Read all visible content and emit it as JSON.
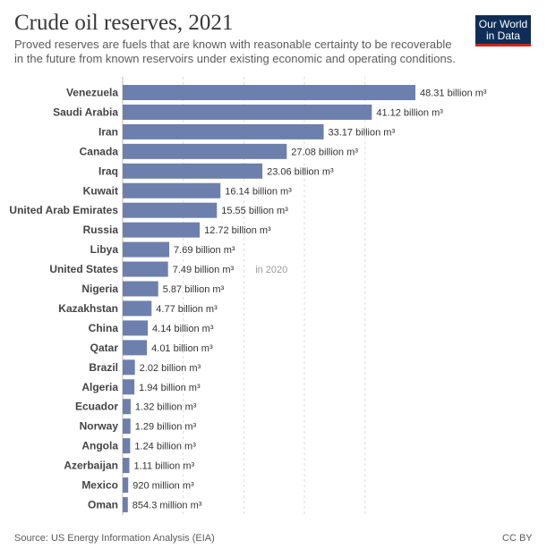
{
  "header": {
    "title": "Crude oil reserves, 2021",
    "subtitle": "Proved reserves are fuels that are known with reasonable certainty to be recoverable in the future from known reservoirs under existing economic and operating conditions."
  },
  "logo": {
    "line1": "Our World",
    "line2": "in Data"
  },
  "footer": {
    "source": "Source: US Energy Information Analysis (EIA)",
    "license": "CC BY"
  },
  "colors": {
    "bar": "#6d7fad",
    "grid": "#dddddd"
  },
  "chart_data": {
    "type": "bar",
    "orientation": "horizontal",
    "grid": true,
    "xlim": [
      0,
      48.31
    ],
    "categories": [
      "Venezuela",
      "Saudi Arabia",
      "Iran",
      "Canada",
      "Iraq",
      "Kuwait",
      "United Arab Emirates",
      "Russia",
      "Libya",
      "United States",
      "Nigeria",
      "Kazakhstan",
      "China",
      "Qatar",
      "Brazil",
      "Algeria",
      "Ecuador",
      "Norway",
      "Angola",
      "Azerbaijan",
      "Mexico",
      "Oman"
    ],
    "values": [
      48.31,
      41.12,
      33.17,
      27.08,
      23.06,
      16.14,
      15.55,
      12.72,
      7.69,
      7.49,
      5.87,
      4.77,
      4.14,
      4.01,
      2.02,
      1.94,
      1.32,
      1.29,
      1.24,
      1.11,
      0.92,
      0.8543
    ],
    "value_labels": [
      "48.31 billion m³",
      "41.12 billion m³",
      "33.17 billion m³",
      "27.08 billion m³",
      "23.06 billion m³",
      "16.14 billion m³",
      "15.55 billion m³",
      "12.72 billion m³",
      "7.69 billion m³",
      "7.49 billion m³",
      "5.87 billion m³",
      "4.77 billion m³",
      "4.14 billion m³",
      "4.01 billion m³",
      "2.02 billion m³",
      "1.94 billion m³",
      "1.32 billion m³",
      "1.29 billion m³",
      "1.24 billion m³",
      "1.11 billion m³",
      "920 million m³",
      "854.3 million m³"
    ],
    "notes": [
      "",
      "",
      "",
      "",
      "",
      "",
      "",
      "",
      "",
      "in 2020",
      "",
      "",
      "",
      "",
      "",
      "",
      "",
      "",
      "",
      "",
      "",
      ""
    ]
  }
}
